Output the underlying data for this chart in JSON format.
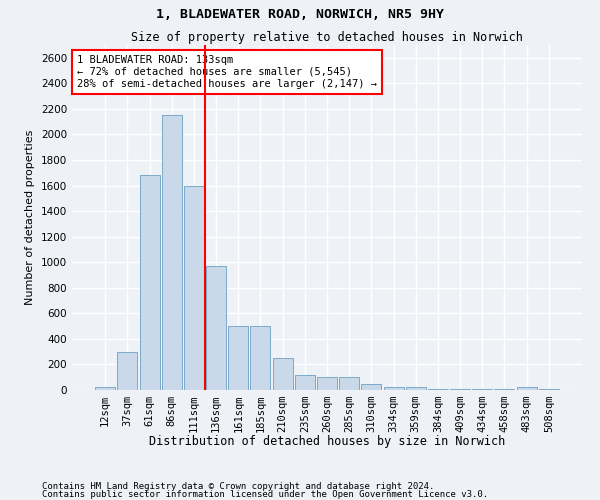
{
  "title": "1, BLADEWATER ROAD, NORWICH, NR5 9HY",
  "subtitle": "Size of property relative to detached houses in Norwich",
  "xlabel": "Distribution of detached houses by size in Norwich",
  "ylabel": "Number of detached properties",
  "bar_color": "#c9d9ea",
  "bar_edge_color": "#7aaac8",
  "categories": [
    "12sqm",
    "37sqm",
    "61sqm",
    "86sqm",
    "111sqm",
    "136sqm",
    "161sqm",
    "185sqm",
    "210sqm",
    "235sqm",
    "260sqm",
    "285sqm",
    "310sqm",
    "334sqm",
    "359sqm",
    "384sqm",
    "409sqm",
    "434sqm",
    "458sqm",
    "483sqm",
    "508sqm"
  ],
  "values": [
    20,
    300,
    1680,
    2150,
    1600,
    970,
    500,
    500,
    248,
    120,
    100,
    100,
    50,
    20,
    20,
    5,
    5,
    5,
    5,
    25,
    5
  ],
  "vline_x": 4.5,
  "annotation_text": "1 BLADEWATER ROAD: 133sqm\n← 72% of detached houses are smaller (5,545)\n28% of semi-detached houses are larger (2,147) →",
  "annotation_box_facecolor": "white",
  "annotation_box_edgecolor": "red",
  "vline_color": "red",
  "ylim": [
    0,
    2700
  ],
  "yticks": [
    0,
    200,
    400,
    600,
    800,
    1000,
    1200,
    1400,
    1600,
    1800,
    2000,
    2200,
    2400,
    2600
  ],
  "footnote1": "Contains HM Land Registry data © Crown copyright and database right 2024.",
  "footnote2": "Contains public sector information licensed under the Open Government Licence v3.0.",
  "background_color": "#eef2f7",
  "grid_color": "white",
  "title_fontsize": 9.5,
  "subtitle_fontsize": 8.5,
  "ylabel_fontsize": 8,
  "xlabel_fontsize": 8.5,
  "tick_fontsize": 7.5,
  "footnote_fontsize": 6.5
}
